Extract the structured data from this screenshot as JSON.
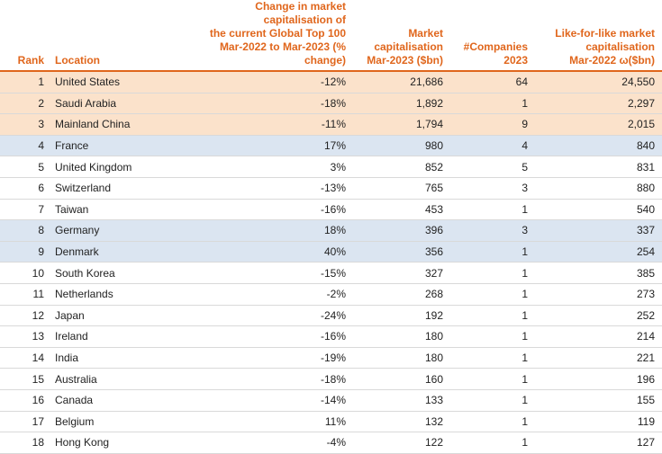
{
  "table": {
    "header": [
      "Rank",
      "Location",
      "Change in market capitalisation of\nthe current Global Top 100\nMar-2022 to Mar-2023 (% change)",
      "Market\ncapitalisation\nMar-2023 ($bn)",
      "#Companies\n2023",
      "Like-for-like market\ncapitalisation\nMar-2022 ω($bn)"
    ],
    "rows": [
      [
        "1",
        "United States",
        "-12%",
        "21,686",
        "64",
        "24,550"
      ],
      [
        "2",
        "Saudi Arabia",
        "-18%",
        "1,892",
        "1",
        "2,297"
      ],
      [
        "3",
        "Mainland China",
        "-11%",
        "1,794",
        "9",
        "2,015"
      ],
      [
        "4",
        "France",
        "17%",
        "980",
        "4",
        "840"
      ],
      [
        "5",
        "United Kingdom",
        "3%",
        "852",
        "5",
        "831"
      ],
      [
        "6",
        "Switzerland",
        "-13%",
        "765",
        "3",
        "880"
      ],
      [
        "7",
        "Taiwan",
        "-16%",
        "453",
        "1",
        "540"
      ],
      [
        "8",
        "Germany",
        "18%",
        "396",
        "3",
        "337"
      ],
      [
        "9",
        "Denmark",
        "40%",
        "356",
        "1",
        "254"
      ],
      [
        "10",
        "South Korea",
        "-15%",
        "327",
        "1",
        "385"
      ],
      [
        "11",
        "Netherlands",
        "-2%",
        "268",
        "1",
        "273"
      ],
      [
        "12",
        "Japan",
        "-24%",
        "192",
        "1",
        "252"
      ],
      [
        "13",
        "Ireland",
        "-16%",
        "180",
        "1",
        "214"
      ],
      [
        "14",
        "India",
        "-19%",
        "180",
        "1",
        "221"
      ],
      [
        "15",
        "Australia",
        "-18%",
        "160",
        "1",
        "196"
      ],
      [
        "16",
        "Canada",
        "-14%",
        "133",
        "1",
        "155"
      ],
      [
        "17",
        "Belgium",
        "11%",
        "132",
        "1",
        "119"
      ],
      [
        "18",
        "Hong Kong",
        "-4%",
        "122",
        "1",
        "127"
      ]
    ]
  }
}
